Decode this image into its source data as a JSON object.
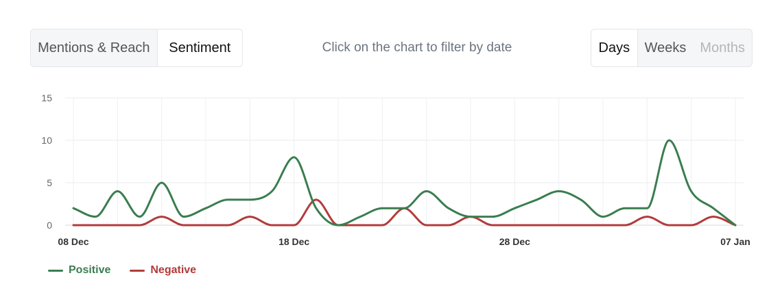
{
  "controls": {
    "metric_tabs": [
      "Mentions & Reach",
      "Sentiment"
    ],
    "metric_active": "Sentiment",
    "hint": "Click on the chart to filter by date",
    "period_tabs": [
      "Days",
      "Weeks",
      "Months"
    ],
    "period_active": "Days",
    "period_disabled": "Months"
  },
  "chart_data": {
    "type": "line",
    "x": [
      "08 Dec",
      "09 Dec",
      "10 Dec",
      "11 Dec",
      "12 Dec",
      "13 Dec",
      "14 Dec",
      "15 Dec",
      "16 Dec",
      "17 Dec",
      "18 Dec",
      "19 Dec",
      "20 Dec",
      "21 Dec",
      "22 Dec",
      "23 Dec",
      "24 Dec",
      "25 Dec",
      "26 Dec",
      "27 Dec",
      "28 Dec",
      "29 Dec",
      "30 Dec",
      "31 Dec",
      "01 Jan",
      "02 Jan",
      "03 Jan",
      "04 Jan",
      "05 Jan",
      "06 Jan",
      "07 Jan"
    ],
    "x_tick_labels": [
      "08 Dec",
      "18 Dec",
      "28 Dec",
      "07 Jan"
    ],
    "ylim": [
      0,
      15
    ],
    "y_ticks": [
      0,
      5,
      10,
      15
    ],
    "grid": true,
    "legend_position": "bottom-left",
    "series": [
      {
        "name": "Positive",
        "color": "#3a7d4f",
        "values": [
          2,
          1,
          4,
          1,
          5,
          1,
          2,
          3,
          3,
          4,
          8,
          2,
          0,
          1,
          2,
          2,
          4,
          2,
          1,
          1,
          2,
          3,
          4,
          3,
          1,
          2,
          2,
          10,
          4,
          2,
          0
        ]
      },
      {
        "name": "Negative",
        "color": "#b23b3b",
        "values": [
          0,
          0,
          0,
          0,
          1,
          0,
          0,
          0,
          1,
          0,
          0,
          3,
          0,
          0,
          0,
          2,
          0,
          0,
          1,
          0,
          0,
          0,
          0,
          0,
          0,
          0,
          1,
          0,
          0,
          1,
          0
        ]
      }
    ]
  }
}
